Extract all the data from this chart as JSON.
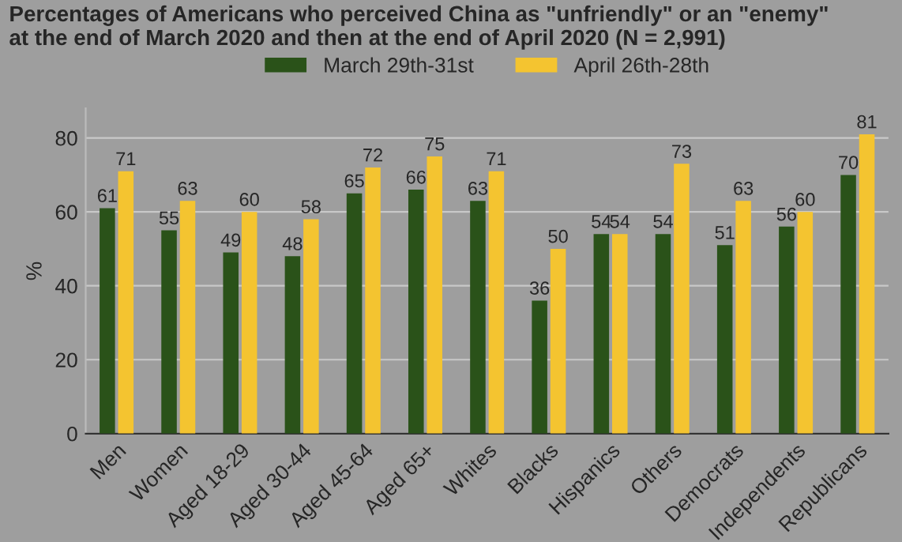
{
  "chart_data": {
    "type": "bar",
    "title": "Percentages of Americans who perceived China as \"unfriendly\" or an \"enemy\"\nat the end of March 2020 and then at the end of April 2020 (N = 2,991)",
    "ylabel": "%",
    "categories": [
      "Men",
      "Women",
      "Aged 18-29",
      "Aged 30-44",
      "Aged 45-64",
      "Aged 65+",
      "Whites",
      "Blacks",
      "Hispanics",
      "Others",
      "Democrats",
      "Independents",
      "Republicans"
    ],
    "series": [
      {
        "name": "March 29th-31st",
        "color": "#2a5219",
        "values": [
          61,
          55,
          49,
          48,
          65,
          66,
          63,
          36,
          54,
          54,
          51,
          56,
          70
        ]
      },
      {
        "name": "April 26th-28th",
        "color": "#f4c430",
        "values": [
          71,
          63,
          60,
          58,
          72,
          75,
          71,
          50,
          54,
          73,
          63,
          60,
          81
        ]
      }
    ],
    "ylim": [
      0,
      88
    ],
    "yticks": [
      0,
      20,
      40,
      60,
      80
    ],
    "grid": "y",
    "legend": "top",
    "data_labels": true
  }
}
